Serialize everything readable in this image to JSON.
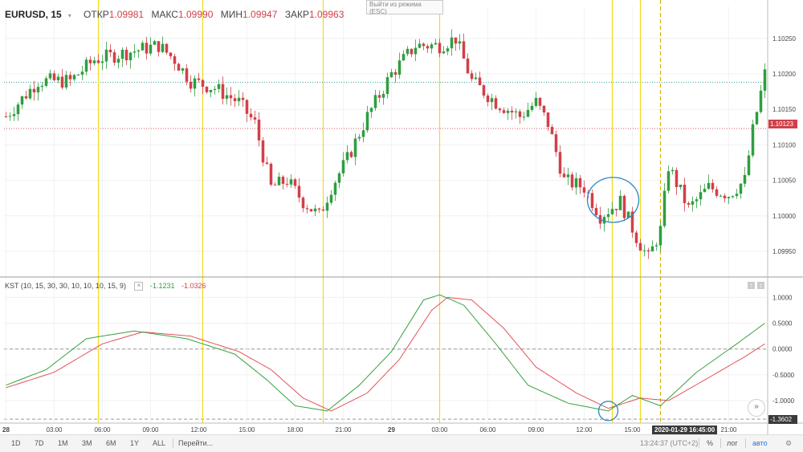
{
  "header": {
    "symbol": "EURUSD, 15",
    "open_label": "ОТКР",
    "open": "1.09981",
    "high_label": "МАКС",
    "high": "1.09990",
    "low_label": "МИН",
    "low": "1.09947",
    "close_label": "ЗАКР",
    "close": "1.09963"
  },
  "esc_tooltip": {
    "line1": "Выйти из режима",
    "line2": "(ESC)"
  },
  "kst": {
    "name": "KST (10, 15, 30, 30, 10, 10, 10, 15, 9)",
    "value_green": "-1.1231",
    "value_red": "-1.0326"
  },
  "price_badge": "1.10123",
  "kst_badge": "-1.3602",
  "time_badge": "2020-01-29 16:45:00",
  "bottom": {
    "ranges": [
      "1D",
      "7D",
      "1M",
      "3M",
      "6M",
      "1Y",
      "ALL"
    ],
    "goto": "Перейти...",
    "clock": "13:24:37 (UTC+2)",
    "percent": "%",
    "log": "лог",
    "auto": "авто"
  },
  "colors": {
    "up": "#2f9e3f",
    "down": "#d23f49",
    "vline": "#f2d91c",
    "kst_green": "#3aa13f",
    "kst_red": "#e2535a",
    "circle": "#2a86c6"
  },
  "chart_data": {
    "type": "candlestick",
    "price_axis_ticks": [
      1.0995,
      1.1,
      1.1005,
      1.101,
      1.1015,
      1.102,
      1.1025
    ],
    "price_axis_labels": [
      "1.09950",
      "1.10000",
      "1.10050",
      "1.10100",
      "1.10150",
      "1.10200",
      "1.10250"
    ],
    "price_ylim": [
      1.09915,
      1.10295
    ],
    "kst_axis_ticks": [
      -1.0,
      -0.5,
      0.0,
      0.5,
      1.0
    ],
    "kst_axis_labels": [
      "-1.0000",
      "-0.5000",
      "0.0000",
      "0.5000",
      "1.0000"
    ],
    "kst_ylim": [
      -1.42,
      1.38
    ],
    "time_labels": [
      "28",
      "03:00",
      "06:00",
      "09:00",
      "12:00",
      "15:00",
      "18:00",
      "21:00",
      "29",
      "03:00",
      "06:00",
      "09:00",
      "12:00",
      "15:00",
      "21:00"
    ],
    "time_label_bar_index": [
      0,
      12,
      24,
      36,
      48,
      60,
      72,
      84,
      96,
      108,
      120,
      132,
      144,
      156,
      180
    ],
    "total_bars": 190,
    "current_price": 1.10123,
    "dotted_level": 1.10188,
    "vertical_line_bars": [
      23,
      49,
      79,
      108,
      151,
      158
    ],
    "dashed_vline_bar": 163,
    "circle_bar": 150,
    "keypoints_close": [
      [
        0,
        1.1014
      ],
      [
        8,
        1.1019
      ],
      [
        16,
        1.1019
      ],
      [
        22,
        1.1022
      ],
      [
        30,
        1.1023
      ],
      [
        38,
        1.1024
      ],
      [
        42,
        1.1022
      ],
      [
        46,
        1.1019
      ],
      [
        52,
        1.1018
      ],
      [
        58,
        1.1016
      ],
      [
        62,
        1.1013
      ],
      [
        66,
        1.1004
      ],
      [
        70,
        1.1005
      ],
      [
        74,
        1.1002
      ],
      [
        78,
        1.1
      ],
      [
        81,
        1.1004
      ],
      [
        85,
        1.1008
      ],
      [
        90,
        1.1014
      ],
      [
        96,
        1.102
      ],
      [
        102,
        1.1024
      ],
      [
        108,
        1.1024
      ],
      [
        112,
        1.1025
      ],
      [
        116,
        1.1019
      ],
      [
        122,
        1.1016
      ],
      [
        128,
        1.1014
      ],
      [
        132,
        1.1016
      ],
      [
        135,
        1.1013
      ],
      [
        139,
        1.1005
      ],
      [
        144,
        1.1004
      ],
      [
        148,
        1.1
      ],
      [
        153,
        1.1002
      ],
      [
        157,
        1.0997
      ],
      [
        160,
        1.0994
      ],
      [
        163,
        1.0998
      ],
      [
        165,
        1.1007
      ],
      [
        170,
        1.1001
      ],
      [
        175,
        1.1004
      ],
      [
        180,
        1.1003
      ],
      [
        184,
        1.1005
      ],
      [
        186,
        1.1012
      ],
      [
        189,
        1.102
      ]
    ],
    "kst_green_points": [
      [
        0,
        -0.7
      ],
      [
        10,
        -0.4
      ],
      [
        20,
        0.2
      ],
      [
        32,
        0.35
      ],
      [
        45,
        0.2
      ],
      [
        57,
        -0.1
      ],
      [
        65,
        -0.6
      ],
      [
        72,
        -1.1
      ],
      [
        80,
        -1.2
      ],
      [
        88,
        -0.7
      ],
      [
        96,
        -0.05
      ],
      [
        104,
        0.95
      ],
      [
        108,
        1.05
      ],
      [
        114,
        0.85
      ],
      [
        122,
        0.1
      ],
      [
        130,
        -0.7
      ],
      [
        140,
        -1.05
      ],
      [
        150,
        -1.2
      ],
      [
        156,
        -0.9
      ],
      [
        163,
        -1.1
      ],
      [
        172,
        -0.45
      ],
      [
        182,
        0.1
      ],
      [
        189,
        0.5
      ]
    ],
    "kst_red_points": [
      [
        0,
        -0.75
      ],
      [
        12,
        -0.45
      ],
      [
        24,
        0.1
      ],
      [
        34,
        0.33
      ],
      [
        46,
        0.25
      ],
      [
        58,
        -0.05
      ],
      [
        66,
        -0.4
      ],
      [
        74,
        -0.95
      ],
      [
        81,
        -1.2
      ],
      [
        90,
        -0.85
      ],
      [
        98,
        -0.2
      ],
      [
        106,
        0.75
      ],
      [
        110,
        1.0
      ],
      [
        116,
        0.95
      ],
      [
        124,
        0.4
      ],
      [
        132,
        -0.35
      ],
      [
        142,
        -0.85
      ],
      [
        150,
        -1.15
      ],
      [
        158,
        -0.95
      ],
      [
        165,
        -1.0
      ],
      [
        174,
        -0.6
      ],
      [
        184,
        -0.15
      ],
      [
        189,
        0.1
      ]
    ]
  }
}
